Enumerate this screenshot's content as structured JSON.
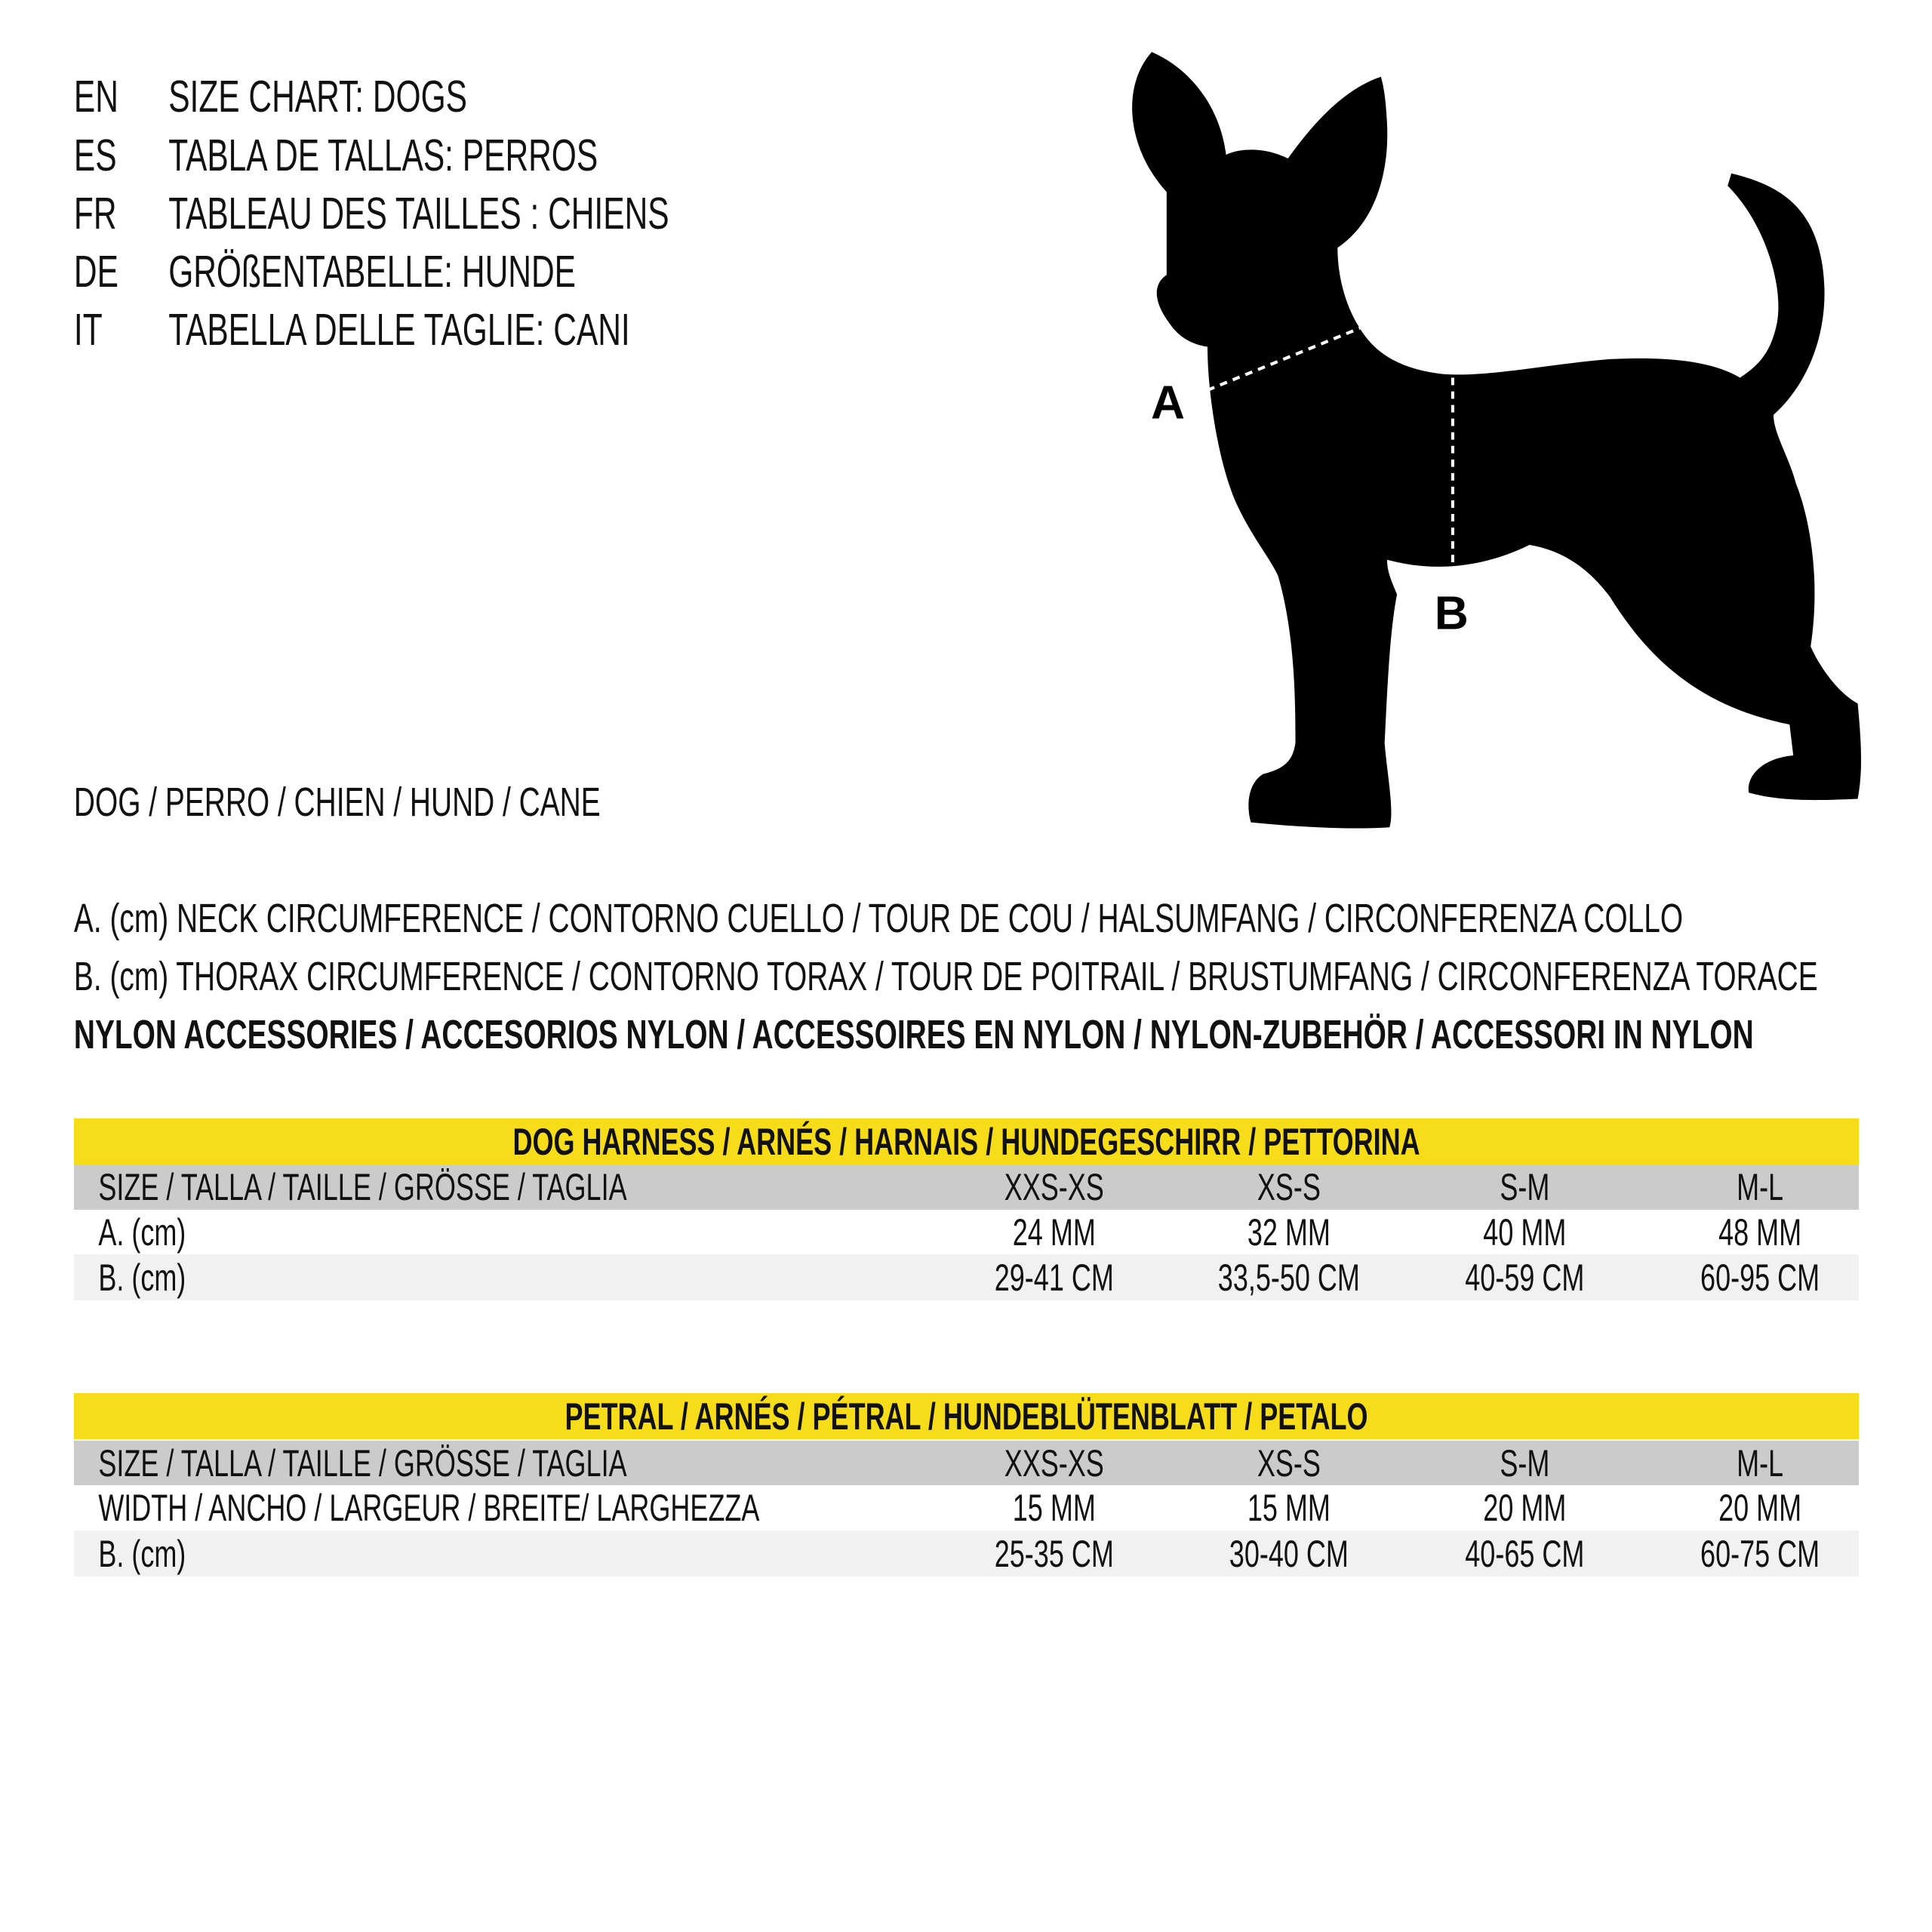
{
  "titles": [
    {
      "code": "EN",
      "text": "SIZE CHART: DOGS"
    },
    {
      "code": "ES",
      "text": "TABLA DE TALLAS: PERROS"
    },
    {
      "code": "FR",
      "text": "TABLEAU DES TAILLES : CHIENS"
    },
    {
      "code": "DE",
      "text": "GRÖßENTABELLE: HUNDE"
    },
    {
      "code": "IT",
      "text": "TABELLA DELLE TAGLIE: CANI"
    }
  ],
  "dog_label": "DOG / PERRO / CHIEN / HUND / CANE",
  "diagram": {
    "label_a": "A",
    "label_b": "B"
  },
  "legend": {
    "a": "A. (cm) NECK CIRCUMFERENCE / CONTORNO CUELLO / TOUR DE COU / HALSUMFANG / CIRCONFERENZA COLLO",
    "b": "B. (cm) THORAX CIRCUMFERENCE / CONTORNO TORAX / TOUR DE POITRAIL / BRUSTUMFANG / CIRCONFERENZA TORACE",
    "nylon": "NYLON ACCESSORIES / ACCESORIOS NYLON / ACCESSOIRES EN NYLON / NYLON-ZUBEHÖR / ACCESSORI IN NYLON"
  },
  "colors": {
    "accent": "#f7dc1a",
    "header_gray": "#cbcbcc",
    "row_light": "#f1f1f1"
  },
  "tables": [
    {
      "title": "DOG HARNESS / ARNÉS / HARNAIS / HUNDEGESCHIRR / PETTORINA",
      "header": {
        "label": "SIZE / TALLA / TAILLE / GRÖSSE / TAGLIA",
        "cols": [
          "XXS-XS",
          "XS-S",
          "S-M",
          "M-L"
        ]
      },
      "rows": [
        {
          "label": "A. (cm)",
          "cols": [
            "24 MM",
            "32 MM",
            "40 MM",
            "48 MM"
          ]
        },
        {
          "label": "B. (cm)",
          "cols": [
            "29-41 CM",
            "33,5-50 CM",
            "40-59 CM",
            "60-95 CM"
          ]
        }
      ]
    },
    {
      "title": "PETRAL / ARNÉS  / PÉTRAL / HUNDEBLÜTENBLATT / PETALO",
      "header": {
        "label": "SIZE / TALLA / TAILLE / GRÖSSE / TAGLIA",
        "cols": [
          "XXS-XS",
          "XS-S",
          "S-M",
          "M-L"
        ]
      },
      "rows": [
        {
          "label": "WIDTH / ANCHO / LARGEUR / BREITE/ LARGHEZZA",
          "cols": [
            "15 MM",
            "15 MM",
            "20 MM",
            "20 MM"
          ]
        },
        {
          "label": "B. (cm)",
          "cols": [
            "25-35 CM",
            "30-40 CM",
            "40-65 CM",
            "60-75 CM"
          ]
        }
      ]
    }
  ]
}
